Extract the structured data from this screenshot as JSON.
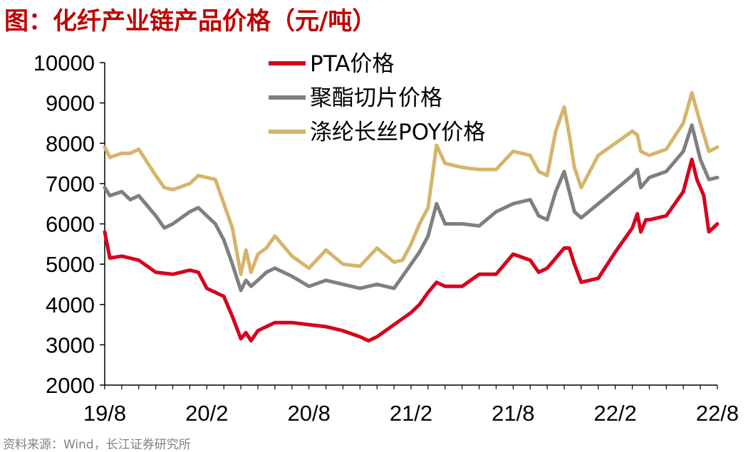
{
  "title": "图：化纤产业链产品价格（元/吨）",
  "source": "资料来源：Wind，长江证券研究所",
  "chart_data": {
    "type": "line",
    "ylim": [
      2000,
      10000
    ],
    "yticks": [
      "10000",
      "9000",
      "8000",
      "7000",
      "6000",
      "5000",
      "4000",
      "3000",
      "2000"
    ],
    "ytick_values": [
      10000,
      9000,
      8000,
      7000,
      6000,
      5000,
      4000,
      3000,
      2000
    ],
    "xticks": [
      "19/8",
      "20/2",
      "20/8",
      "21/2",
      "21/8",
      "22/2",
      "22/8"
    ],
    "x_month_index": [
      0,
      6,
      12,
      18,
      24,
      30,
      36
    ],
    "x_range_months": [
      0,
      36
    ],
    "legend_position": "top-center",
    "series": [
      {
        "name": "PTA价格",
        "color": "#d6001c",
        "x": [
          0,
          0.3,
          1,
          2,
          3,
          4,
          5,
          5.5,
          6,
          6.5,
          7,
          7.5,
          8,
          8.3,
          8.6,
          9,
          9.5,
          10,
          11,
          12,
          13,
          14,
          15,
          15.5,
          16,
          17,
          18,
          18.5,
          19,
          19.5,
          20,
          21,
          22,
          23,
          24,
          25,
          25.5,
          26,
          26.5,
          27,
          27.3,
          27.6,
          28,
          29,
          30,
          31,
          31.3,
          31.5,
          31.8,
          32,
          33,
          34,
          34.5,
          34.8,
          35.2,
          35.5,
          36
        ],
        "y": [
          5800,
          5150,
          5200,
          5100,
          4800,
          4750,
          4850,
          4800,
          4400,
          4300,
          4200,
          3700,
          3150,
          3300,
          3100,
          3350,
          3450,
          3550,
          3550,
          3500,
          3450,
          3350,
          3200,
          3100,
          3200,
          3500,
          3800,
          4000,
          4300,
          4550,
          4450,
          4450,
          4750,
          4750,
          5250,
          5100,
          4800,
          4900,
          5150,
          5400,
          5400,
          5000,
          4550,
          4650,
          5300,
          5900,
          6250,
          5800,
          6100,
          6100,
          6200,
          6800,
          7600,
          7100,
          6700,
          5800,
          6000
        ]
      },
      {
        "name": "聚酯切片价格",
        "color": "#7f7f7f",
        "x": [
          0,
          0.3,
          1,
          1.5,
          2,
          3,
          3.5,
          4,
          5,
          5.5,
          6,
          6.5,
          7,
          7.5,
          8,
          8.3,
          8.6,
          9,
          9.5,
          10,
          11,
          12,
          13,
          14,
          15,
          16,
          17,
          17.5,
          18,
          18.5,
          19,
          19.5,
          20,
          21,
          22,
          23,
          24,
          25,
          25.5,
          26,
          26.5,
          27,
          27.3,
          27.6,
          28,
          29,
          30,
          31,
          31.3,
          31.5,
          32,
          33,
          34,
          34.5,
          35,
          35.5,
          36
        ],
        "y": [
          6900,
          6700,
          6800,
          6600,
          6700,
          6200,
          5900,
          6000,
          6300,
          6400,
          6200,
          6000,
          5600,
          5000,
          4350,
          4600,
          4450,
          4600,
          4800,
          4900,
          4700,
          4450,
          4600,
          4500,
          4400,
          4500,
          4400,
          4700,
          5000,
          5300,
          5700,
          6500,
          6000,
          6000,
          5950,
          6300,
          6500,
          6600,
          6200,
          6100,
          6800,
          7300,
          6800,
          6300,
          6150,
          6500,
          6850,
          7200,
          7350,
          6900,
          7150,
          7300,
          7800,
          8450,
          7600,
          7100,
          7150
        ]
      },
      {
        "name": "涤纶长丝POY价格",
        "color": "#d6b46b",
        "x": [
          0,
          0.3,
          1,
          1.5,
          2,
          3,
          3.5,
          4,
          5,
          5.5,
          6,
          6.5,
          7,
          7.5,
          8,
          8.3,
          8.6,
          9,
          9.5,
          10,
          11,
          12,
          13,
          14,
          15,
          16,
          17,
          17.5,
          18,
          18.5,
          19,
          19.5,
          20,
          21,
          22,
          23,
          24,
          25,
          25.5,
          26,
          26.5,
          27,
          27.3,
          27.6,
          28,
          29,
          30,
          31,
          31.3,
          31.5,
          32,
          33,
          34,
          34.5,
          35,
          35.5,
          36
        ],
        "y": [
          7900,
          7650,
          7750,
          7750,
          7850,
          7200,
          6900,
          6850,
          7000,
          7200,
          7150,
          7100,
          6500,
          5900,
          4750,
          5350,
          4800,
          5250,
          5400,
          5700,
          5200,
          4900,
          5350,
          5000,
          4950,
          5400,
          5050,
          5100,
          5500,
          6000,
          6400,
          7950,
          7500,
          7400,
          7350,
          7350,
          7800,
          7700,
          7300,
          7200,
          8300,
          8900,
          8200,
          7400,
          6900,
          7700,
          8000,
          8300,
          8200,
          7800,
          7700,
          7850,
          8500,
          9250,
          8500,
          7800,
          7900
        ]
      }
    ]
  }
}
